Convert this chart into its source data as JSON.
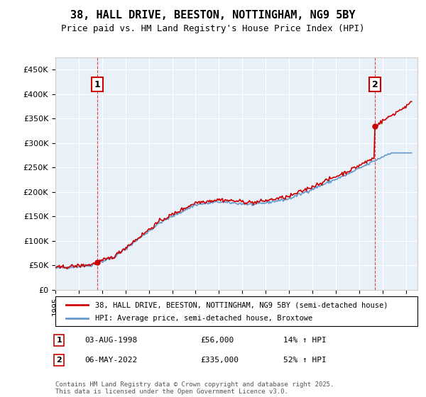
{
  "title": "38, HALL DRIVE, BEESTON, NOTTINGHAM, NG9 5BY",
  "subtitle": "Price paid vs. HM Land Registry's House Price Index (HPI)",
  "legend_line1": "38, HALL DRIVE, BEESTON, NOTTINGHAM, NG9 5BY (semi-detached house)",
  "legend_line2": "HPI: Average price, semi-detached house, Broxtowe",
  "annotation1_date": "03-AUG-1998",
  "annotation1_price": "£56,000",
  "annotation1_hpi": "14% ↑ HPI",
  "annotation2_date": "06-MAY-2022",
  "annotation2_price": "£335,000",
  "annotation2_hpi": "52% ↑ HPI",
  "footer": "Contains HM Land Registry data © Crown copyright and database right 2025.\nThis data is licensed under the Open Government Licence v3.0.",
  "hpi_color": "#6699cc",
  "price_color": "#cc0000",
  "annotation_color": "#cc0000",
  "background_plot": "#e8f0f8",
  "grid_color": "#ffffff",
  "ylim": [
    0,
    475000
  ],
  "yticks": [
    0,
    50000,
    100000,
    150000,
    200000,
    250000,
    300000,
    350000,
    400000,
    450000
  ],
  "sale1_x": 1998.58,
  "sale1_y": 56000,
  "sale2_x": 2022.35,
  "sale2_y": 335000,
  "xmin": 1995,
  "xmax": 2026
}
